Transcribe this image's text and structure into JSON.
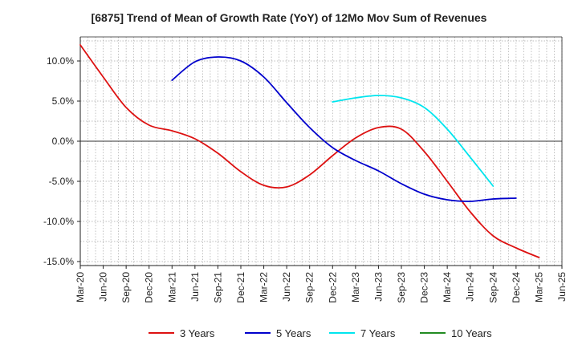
{
  "chart_data": {
    "type": "line",
    "title": "[6875]  Trend of Mean of Growth Rate (YoY) of 12Mo Mov Sum of Revenues",
    "xlabel": "",
    "ylabel": "",
    "ylim": [
      -15.5,
      13
    ],
    "y_ticks": [
      10,
      5,
      0,
      -5,
      -10,
      -15
    ],
    "y_tick_labels": [
      "10.0%",
      "5.0%",
      "0.0%",
      "-5.0%",
      "-10.0%",
      "-15.0%"
    ],
    "grid": true,
    "x_ticks": [
      "Mar-20",
      "Jun-20",
      "Sep-20",
      "Dec-20",
      "Mar-21",
      "Jun-21",
      "Sep-21",
      "Dec-21",
      "Mar-22",
      "Jun-22",
      "Sep-22",
      "Dec-22",
      "Mar-23",
      "Jun-23",
      "Sep-23",
      "Dec-23",
      "Mar-24",
      "Jun-24",
      "Sep-24",
      "Dec-24",
      "Mar-25",
      "Jun-25"
    ],
    "legend_position": "bottom",
    "series": [
      {
        "name": "3 Years",
        "color": "#dd1111",
        "points": [
          [
            0,
            12.0
          ],
          [
            1,
            8.0
          ],
          [
            2,
            4.2
          ],
          [
            3,
            2.0
          ],
          [
            4,
            1.3
          ],
          [
            5,
            0.3
          ],
          [
            6,
            -1.5
          ],
          [
            7,
            -3.8
          ],
          [
            8,
            -5.5
          ],
          [
            9,
            -5.7
          ],
          [
            10,
            -4.2
          ],
          [
            11,
            -1.8
          ],
          [
            12,
            0.4
          ],
          [
            13,
            1.7
          ],
          [
            14,
            1.5
          ],
          [
            15,
            -1.3
          ],
          [
            16,
            -5.0
          ],
          [
            17,
            -8.8
          ],
          [
            18,
            -11.8
          ],
          [
            19,
            -13.3
          ],
          [
            20,
            -14.5
          ]
        ]
      },
      {
        "name": "5 Years",
        "color": "#0000cc",
        "points": [
          [
            4,
            7.6
          ],
          [
            5,
            9.9
          ],
          [
            6,
            10.5
          ],
          [
            7,
            10.0
          ],
          [
            8,
            8.0
          ],
          [
            9,
            4.8
          ],
          [
            10,
            1.7
          ],
          [
            11,
            -0.8
          ],
          [
            12,
            -2.4
          ],
          [
            13,
            -3.7
          ],
          [
            14,
            -5.3
          ],
          [
            15,
            -6.6
          ],
          [
            16,
            -7.3
          ],
          [
            17,
            -7.5
          ],
          [
            18,
            -7.2
          ],
          [
            19,
            -7.1
          ]
        ]
      },
      {
        "name": "7 Years",
        "color": "#00e5ee",
        "points": [
          [
            11,
            4.9
          ],
          [
            12,
            5.4
          ],
          [
            13,
            5.7
          ],
          [
            14,
            5.4
          ],
          [
            15,
            4.2
          ],
          [
            16,
            1.5
          ],
          [
            17,
            -2.0
          ],
          [
            18,
            -5.6
          ]
        ]
      },
      {
        "name": "10 Years",
        "color": "#228b22",
        "points": []
      }
    ]
  }
}
